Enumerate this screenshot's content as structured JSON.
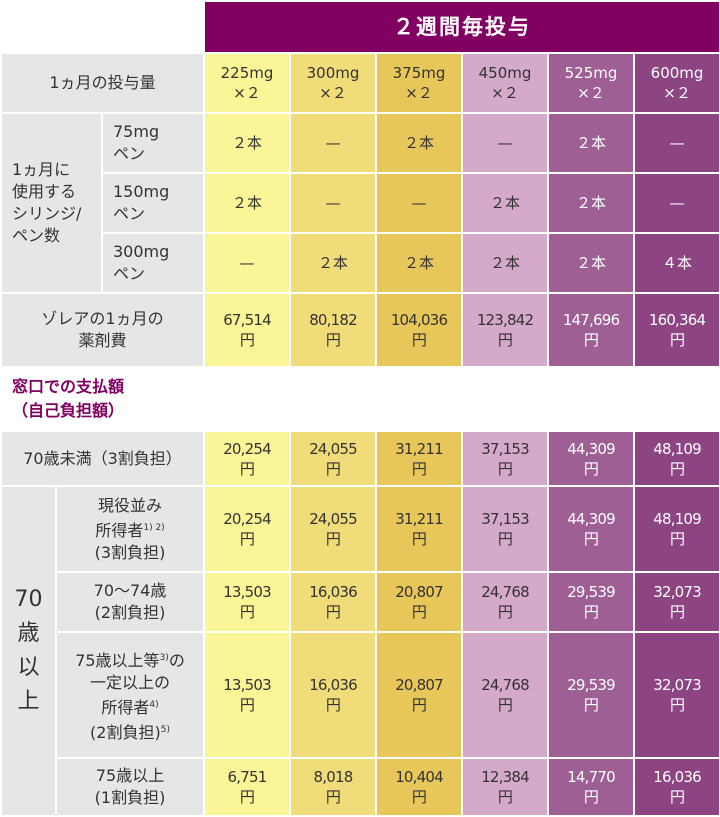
{
  "title": "２週間毎投与",
  "columns": [
    "225mg\n×２",
    "300mg\n×２",
    "375mg\n×２",
    "450mg\n×２",
    "525mg\n×２",
    "600mg\n×２"
  ],
  "column_colors": [
    "#faf596",
    "#f0dc78",
    "#e8c75a",
    "#d4a9c9",
    "#9e5f95",
    "#8c4482"
  ],
  "dose_label": "1ヵ月の投与量",
  "pen_group_label": "1ヵ月に\n使用する\nシリンジ/\nペン数",
  "pen_rows": [
    {
      "label": "75mg\nペン",
      "values": [
        "２本",
        "—",
        "２本",
        "—",
        "２本",
        "—"
      ]
    },
    {
      "label": "150mg\nペン",
      "values": [
        "２本",
        "—",
        "—",
        "２本",
        "２本",
        "—"
      ]
    },
    {
      "label": "300mg\nペン",
      "values": [
        "—",
        "２本",
        "２本",
        "２本",
        "２本",
        "４本"
      ]
    }
  ],
  "cost_row": {
    "label": "ゾレアの1ヵ月の\n薬剤費",
    "values": [
      "67,514\n円",
      "80,182\n円",
      "104,036\n円",
      "123,842\n円",
      "147,696\n円",
      "160,364\n円"
    ]
  },
  "section_label": "窓口での支払額\n（自己負担額）",
  "under70": {
    "label": "70歳未満（3割負担）",
    "values": [
      "20,254\n円",
      "24,055\n円",
      "31,211\n円",
      "37,153\n円",
      "44,309\n円",
      "48,109\n円"
    ]
  },
  "over70_label": "70\n歳\n以\n上",
  "over70_rows": [
    {
      "lines": [
        {
          "text": "現役並み"
        },
        {
          "text": "所得者",
          "sup": "1) 2)"
        },
        {
          "text": "(3割負担)"
        }
      ],
      "values": [
        "20,254\n円",
        "24,055\n円",
        "31,211\n円",
        "37,153\n円",
        "44,309\n円",
        "48,109\n円"
      ]
    },
    {
      "lines": [
        {
          "text": "70〜74歳"
        },
        {
          "text": "(2割負担)"
        }
      ],
      "values": [
        "13,503\n円",
        "16,036\n円",
        "20,807\n円",
        "24,768\n円",
        "29,539\n円",
        "32,073\n円"
      ]
    },
    {
      "lines": [
        {
          "text": "75歳以上等",
          "sup": "3)",
          "after": "の"
        },
        {
          "text": "一定以上の"
        },
        {
          "text": "所得者",
          "sup": "4)"
        },
        {
          "text": "(2割負担)",
          "sup": "5)"
        }
      ],
      "values": [
        "13,503\n円",
        "16,036\n円",
        "20,807\n円",
        "24,768\n円",
        "29,539\n円",
        "32,073\n円"
      ]
    },
    {
      "lines": [
        {
          "text": "75歳以上"
        },
        {
          "text": "(1割負担)"
        }
      ],
      "values": [
        "6,751\n円",
        "8,018\n円",
        "10,404\n円",
        "12,384\n円",
        "14,770\n円",
        "16,036\n円"
      ]
    }
  ]
}
